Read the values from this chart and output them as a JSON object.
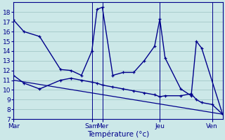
{
  "background_color": "#cce8e8",
  "grid_color": "#a8cccc",
  "line_color": "#00008b",
  "xlabel": "Température (°c)",
  "ylim": [
    7,
    19
  ],
  "yticks": [
    7,
    8,
    9,
    10,
    11,
    12,
    13,
    14,
    15,
    16,
    17,
    18
  ],
  "day_labels": [
    "Mar",
    "Sam",
    "Mer",
    "Jeu",
    "Ven"
  ],
  "day_positions": [
    0,
    15,
    17,
    28,
    38
  ],
  "xlim": [
    0,
    40
  ],
  "line1_x": [
    0,
    2,
    5,
    9,
    11,
    13,
    15,
    16,
    17,
    19,
    21,
    23,
    25,
    27,
    28,
    29,
    32,
    34,
    35,
    36,
    40
  ],
  "line1_y": [
    17.2,
    16.0,
    15.5,
    12.1,
    12.0,
    11.5,
    14.0,
    18.3,
    18.5,
    11.5,
    11.8,
    11.8,
    13.0,
    14.5,
    17.3,
    13.3,
    10.1,
    9.4,
    15.0,
    14.3,
    7.5
  ],
  "line2_x": [
    0,
    2,
    5,
    9,
    11,
    13,
    15,
    16,
    17,
    19,
    21,
    23,
    25,
    27,
    28,
    29,
    32,
    34,
    35,
    36,
    38,
    40
  ],
  "line2_y": [
    11.5,
    10.7,
    10.1,
    11.0,
    11.2,
    11.0,
    10.8,
    10.7,
    10.5,
    10.3,
    10.1,
    9.9,
    9.7,
    9.5,
    9.3,
    9.4,
    9.4,
    9.6,
    9.0,
    8.7,
    8.5,
    7.5
  ],
  "line3_x": [
    0,
    40
  ],
  "line3_y": [
    11.0,
    7.5
  ]
}
